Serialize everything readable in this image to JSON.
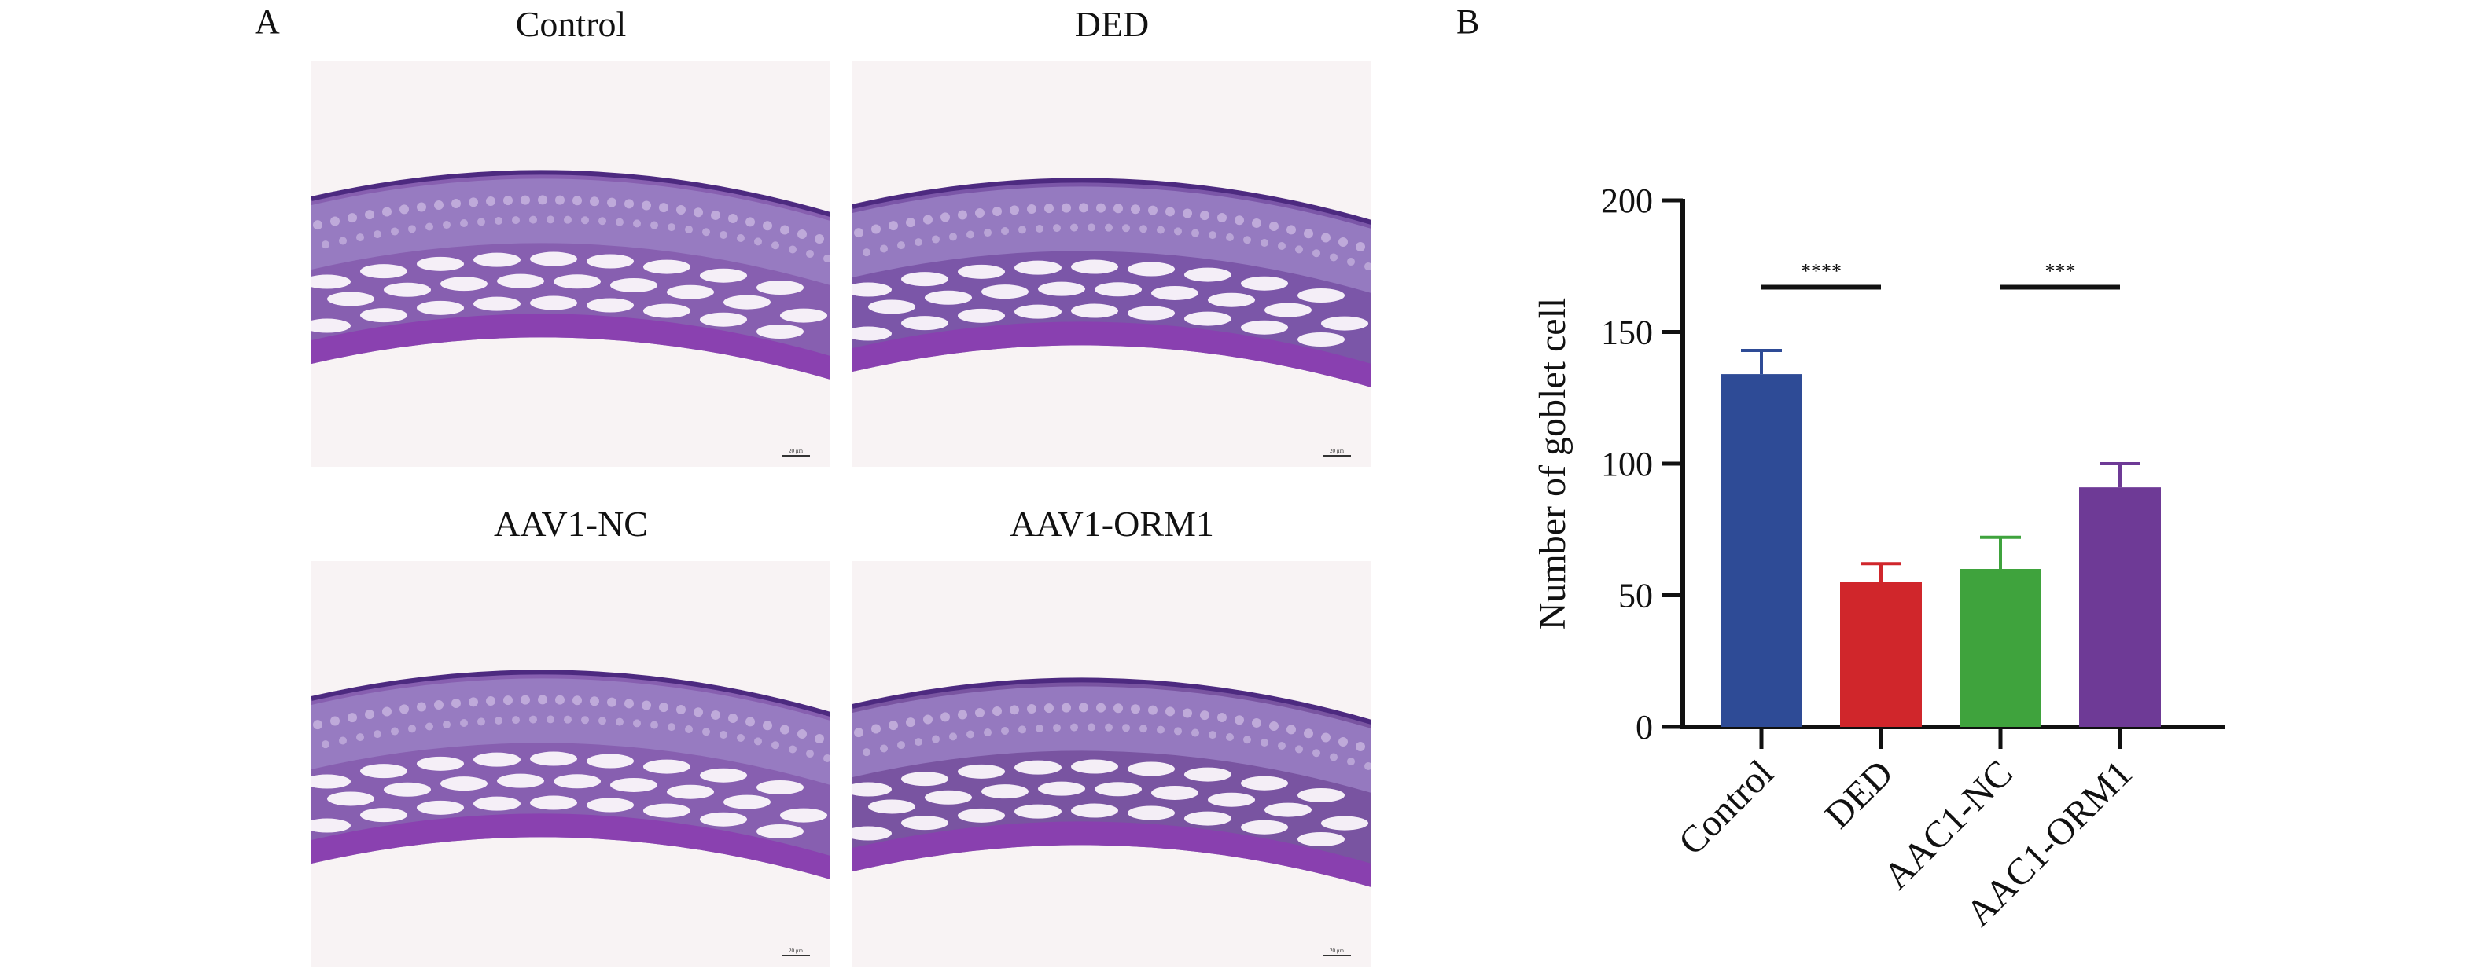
{
  "figure": {
    "panel_a_label": "A",
    "panel_b_label": "B"
  },
  "micrographs": [
    {
      "title": "Control",
      "tissue_shade": "#7a4fa8",
      "scale_bar": "20 μm"
    },
    {
      "title": "DED",
      "tissue_shade": "#6d45a0",
      "scale_bar": "20 μm"
    },
    {
      "title": "AAV1-NC",
      "tissue_shade": "#7a4fa8",
      "scale_bar": "20 μm"
    },
    {
      "title": "AAV1-ORM1",
      "tissue_shade": "#6a4298",
      "scale_bar": "20 μm"
    }
  ],
  "chart_data": {
    "type": "bar",
    "title": "",
    "xlabel": "",
    "ylabel": "Number of goblet cell",
    "ylim": [
      0,
      200
    ],
    "yticks": [
      0,
      50,
      100,
      150,
      200
    ],
    "categories": [
      "Control",
      "DED",
      "AAC1-NC",
      "AAC1-ORM1"
    ],
    "values": [
      134,
      55,
      60,
      91
    ],
    "errors": [
      9,
      7,
      12,
      9
    ],
    "colors": [
      "#2e4b96",
      "#d0262b",
      "#3fa33d",
      "#6e3a96"
    ],
    "grid": false,
    "significance": [
      {
        "from": 0,
        "to": 1,
        "label": "****",
        "y": 167
      },
      {
        "from": 2,
        "to": 3,
        "label": "***",
        "y": 167
      }
    ]
  }
}
